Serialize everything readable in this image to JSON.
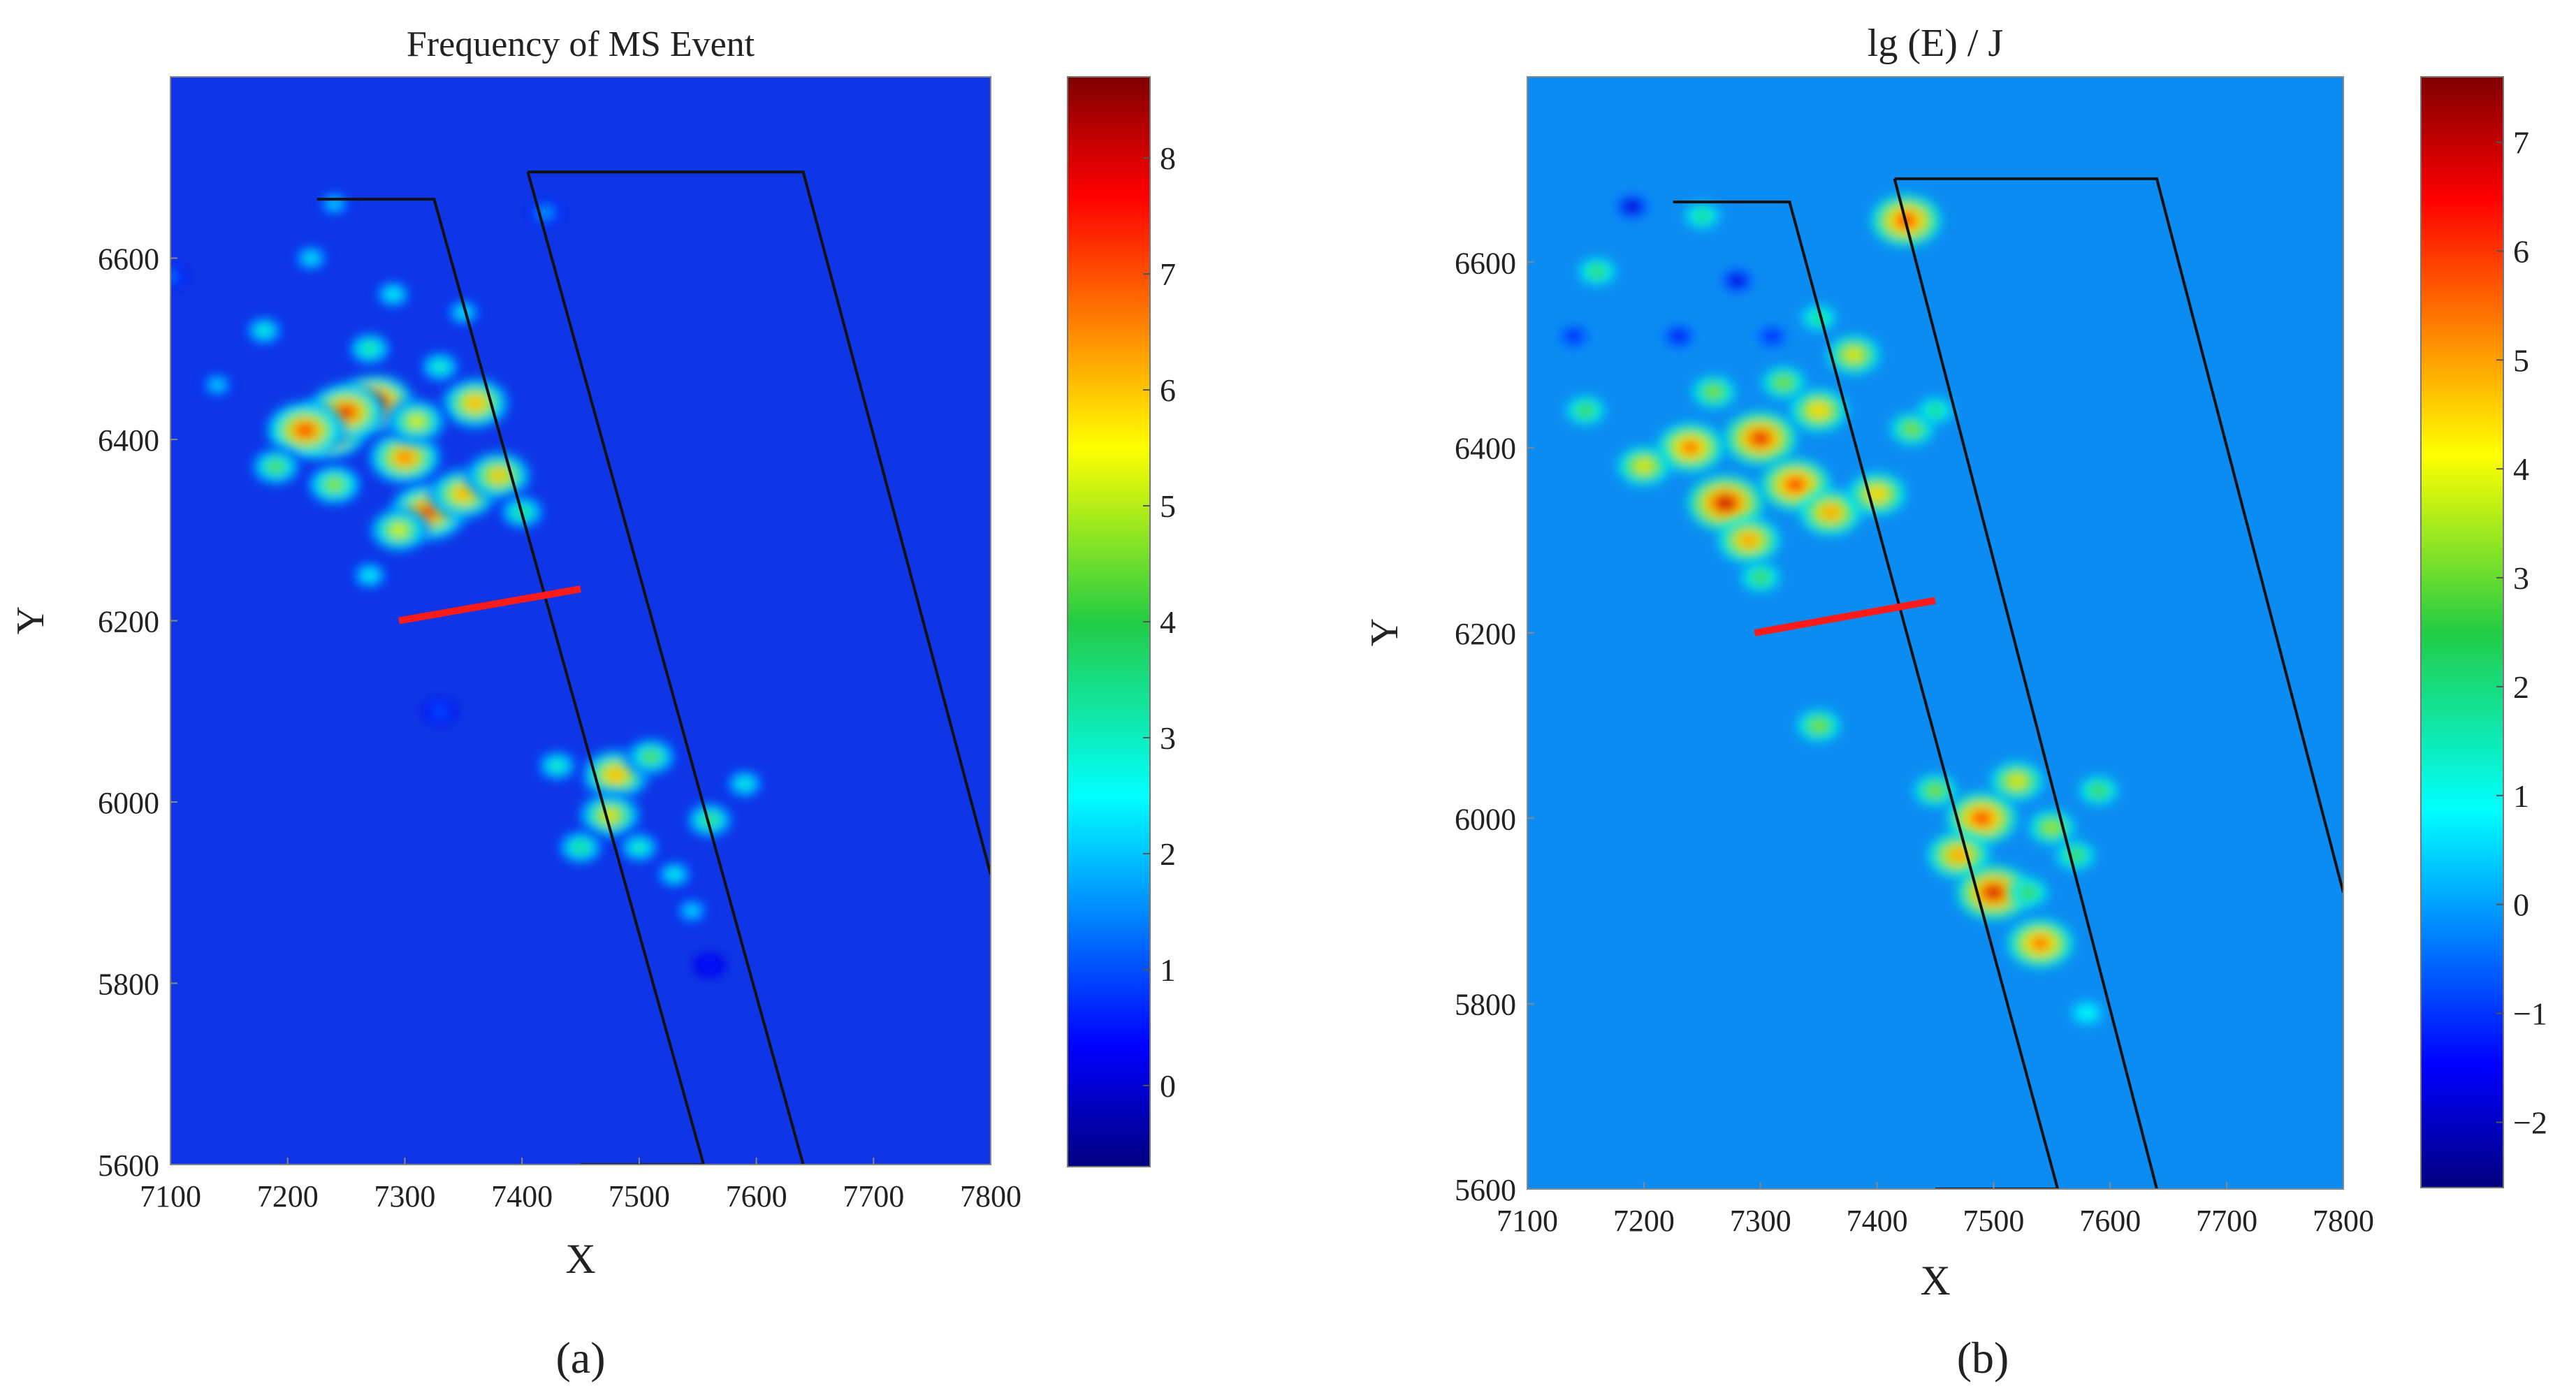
{
  "chart_data": [
    {
      "type": "heatmap",
      "panel_label": "(a)",
      "title": "Frequency of MS Event",
      "xlabel": "X",
      "ylabel": "Y",
      "xlim": [
        7100,
        7800
      ],
      "ylim": [
        5600,
        6800
      ],
      "x_ticks": [
        7100,
        7200,
        7300,
        7400,
        7500,
        7600,
        7700,
        7800
      ],
      "y_ticks": [
        5600,
        5800,
        6000,
        6200,
        6400,
        6600
      ],
      "colorbar": {
        "min": -0.7,
        "max": 8.7,
        "ticks": [
          0,
          1,
          2,
          3,
          4,
          5,
          6,
          7,
          8
        ]
      },
      "background_value": 0,
      "hotspots": [
        {
          "x": 7235,
          "y": 6410,
          "value": 8.2
        },
        {
          "x": 7275,
          "y": 6440,
          "value": 8.6
        },
        {
          "x": 7250,
          "y": 6430,
          "value": 7.8
        },
        {
          "x": 7215,
          "y": 6410,
          "value": 7.6
        },
        {
          "x": 7300,
          "y": 6380,
          "value": 7.0
        },
        {
          "x": 7320,
          "y": 6320,
          "value": 7.5
        },
        {
          "x": 7350,
          "y": 6340,
          "value": 6.5
        },
        {
          "x": 7380,
          "y": 6360,
          "value": 6.2
        },
        {
          "x": 7295,
          "y": 6300,
          "value": 5.5
        },
        {
          "x": 7360,
          "y": 6440,
          "value": 6.5
        },
        {
          "x": 7240,
          "y": 6350,
          "value": 5.0
        },
        {
          "x": 7190,
          "y": 6370,
          "value": 4.5
        },
        {
          "x": 7310,
          "y": 6420,
          "value": 5.5
        },
        {
          "x": 7400,
          "y": 6320,
          "value": 4.0
        },
        {
          "x": 7270,
          "y": 6500,
          "value": 3.8
        },
        {
          "x": 7330,
          "y": 6480,
          "value": 3.5
        },
        {
          "x": 7180,
          "y": 6520,
          "value": 3.2
        },
        {
          "x": 7290,
          "y": 6560,
          "value": 3.0
        },
        {
          "x": 7220,
          "y": 6600,
          "value": 2.8
        },
        {
          "x": 7240,
          "y": 6660,
          "value": 2.5
        },
        {
          "x": 7420,
          "y": 6650,
          "value": 2.0
        },
        {
          "x": 7100,
          "y": 6580,
          "value": 1.5
        },
        {
          "x": 7350,
          "y": 6540,
          "value": 2.8
        },
        {
          "x": 7140,
          "y": 6460,
          "value": 2.5
        },
        {
          "x": 7270,
          "y": 6250,
          "value": 3.0
        },
        {
          "x": 7330,
          "y": 6100,
          "value": 1.2
        },
        {
          "x": 7480,
          "y": 6030,
          "value": 6.5
        },
        {
          "x": 7475,
          "y": 5985,
          "value": 5.8
        },
        {
          "x": 7510,
          "y": 6050,
          "value": 4.5
        },
        {
          "x": 7450,
          "y": 5950,
          "value": 4.0
        },
        {
          "x": 7430,
          "y": 6040,
          "value": 3.5
        },
        {
          "x": 7560,
          "y": 5980,
          "value": 4.2
        },
        {
          "x": 7590,
          "y": 6020,
          "value": 3.2
        },
        {
          "x": 7530,
          "y": 5920,
          "value": 3.0
        },
        {
          "x": 7545,
          "y": 5880,
          "value": 2.6
        },
        {
          "x": 7500,
          "y": 5950,
          "value": 3.5
        },
        {
          "x": 7560,
          "y": 5820,
          "value": 0.6
        }
      ],
      "lines": {
        "fault_zones": [
          {
            "points": [
              [
                7225,
                6665
              ],
              [
                7325,
                6665
              ],
              [
                7555,
                5600
              ],
              [
                7450,
                5600
              ]
            ]
          },
          {
            "points": [
              [
                7405,
                6695
              ],
              [
                7640,
                6695
              ],
              [
                7800,
                5920
              ]
            ]
          },
          {
            "points": [
              [
                7405,
                6695
              ],
              [
                7640,
                5600
              ]
            ]
          }
        ],
        "red_segment": [
          [
            7295,
            6200
          ],
          [
            7450,
            6235
          ]
        ]
      },
      "colors": {
        "background": "#0e36e6",
        "line": "#111111",
        "red_line": "#ff1a1a"
      }
    },
    {
      "type": "heatmap",
      "panel_label": "(b)",
      "title": "lg (E) / J",
      "xlabel": "X",
      "ylabel": "Y",
      "xlim": [
        7100,
        7800
      ],
      "ylim": [
        5600,
        6800
      ],
      "x_ticks": [
        7100,
        7200,
        7300,
        7400,
        7500,
        7600,
        7700,
        7800
      ],
      "y_ticks": [
        5600,
        5800,
        6000,
        6200,
        6400,
        6600
      ],
      "colorbar": {
        "min": -2.6,
        "max": 7.6,
        "ticks": [
          -2,
          -1,
          0,
          1,
          2,
          3,
          4,
          5,
          6,
          7
        ]
      },
      "background_value": 0,
      "hotspots": [
        {
          "x": 7270,
          "y": 6340,
          "value": 7.2
        },
        {
          "x": 7300,
          "y": 6410,
          "value": 6.8
        },
        {
          "x": 7240,
          "y": 6400,
          "value": 6.0
        },
        {
          "x": 7330,
          "y": 6360,
          "value": 6.5
        },
        {
          "x": 7360,
          "y": 6330,
          "value": 5.5
        },
        {
          "x": 7400,
          "y": 6350,
          "value": 5.0
        },
        {
          "x": 7350,
          "y": 6440,
          "value": 5.0
        },
        {
          "x": 7290,
          "y": 6300,
          "value": 5.5
        },
        {
          "x": 7200,
          "y": 6380,
          "value": 4.5
        },
        {
          "x": 7380,
          "y": 6500,
          "value": 4.5
        },
        {
          "x": 7320,
          "y": 6470,
          "value": 3.5
        },
        {
          "x": 7260,
          "y": 6460,
          "value": 3.5
        },
        {
          "x": 7150,
          "y": 6440,
          "value": 3.0
        },
        {
          "x": 7430,
          "y": 6420,
          "value": 3.5
        },
        {
          "x": 7350,
          "y": 6540,
          "value": 2.5
        },
        {
          "x": 7160,
          "y": 6590,
          "value": 2.8
        },
        {
          "x": 7250,
          "y": 6650,
          "value": 2.5
        },
        {
          "x": 7425,
          "y": 6645,
          "value": 6.5
        },
        {
          "x": 7450,
          "y": 6440,
          "value": 2.5
        },
        {
          "x": 7300,
          "y": 6260,
          "value": 3.0
        },
        {
          "x": 7350,
          "y": 6100,
          "value": 3.5
        },
        {
          "x": 7490,
          "y": 6000,
          "value": 6.5
        },
        {
          "x": 7470,
          "y": 5960,
          "value": 5.5
        },
        {
          "x": 7500,
          "y": 5920,
          "value": 7.0
        },
        {
          "x": 7520,
          "y": 6040,
          "value": 4.5
        },
        {
          "x": 7450,
          "y": 6030,
          "value": 3.5
        },
        {
          "x": 7550,
          "y": 5990,
          "value": 3.8
        },
        {
          "x": 7570,
          "y": 5960,
          "value": 3.0
        },
        {
          "x": 7590,
          "y": 6030,
          "value": 3.0
        },
        {
          "x": 7540,
          "y": 5865,
          "value": 6.0
        },
        {
          "x": 7530,
          "y": 5920,
          "value": 3.0
        },
        {
          "x": 7580,
          "y": 5790,
          "value": 1.2
        },
        {
          "x": 7190,
          "y": 6660,
          "value": -2.4
        },
        {
          "x": 7280,
          "y": 6580,
          "value": -2.2
        },
        {
          "x": 7230,
          "y": 6520,
          "value": -1.8
        },
        {
          "x": 7310,
          "y": 6520,
          "value": -1.5
        },
        {
          "x": 7140,
          "y": 6520,
          "value": -1.5
        }
      ],
      "lines": {
        "fault_zones": [
          {
            "points": [
              [
                7225,
                6665
              ],
              [
                7325,
                6665
              ],
              [
                7555,
                5600
              ],
              [
                7450,
                5600
              ]
            ]
          },
          {
            "points": [
              [
                7415,
                6690
              ],
              [
                7640,
                6690
              ],
              [
                7800,
                5920
              ]
            ]
          },
          {
            "points": [
              [
                7415,
                6690
              ],
              [
                7640,
                5600
              ]
            ]
          }
        ],
        "red_segment": [
          [
            7295,
            6200
          ],
          [
            7450,
            6235
          ]
        ]
      },
      "colors": {
        "background": "#0b8cf2",
        "line": "#111111",
        "red_line": "#ff1a1a"
      }
    }
  ]
}
